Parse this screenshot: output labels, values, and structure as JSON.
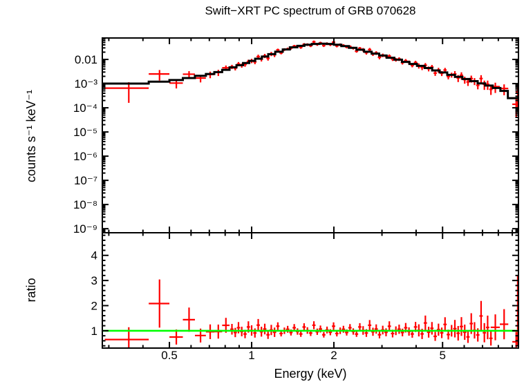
{
  "title": "Swift−XRT PC spectrum of GRB 070628",
  "colors": {
    "data": "#ff0000",
    "model": "#000000",
    "reference_line": "#00ff00",
    "frame": "#000000",
    "text": "#000000",
    "background": "#ffffff"
  },
  "axes": {
    "x_label": "Energy (keV)",
    "x_scale": "log",
    "x_range_kev": [
      0.284,
      9.48
    ],
    "x_major_ticks": [
      {
        "value": 0.5,
        "label": "0.5"
      },
      {
        "value": 1,
        "label": "1"
      },
      {
        "value": 2,
        "label": "2"
      },
      {
        "value": 5,
        "label": "5"
      }
    ],
    "x_minor_ticks": [
      0.3,
      0.4,
      0.6,
      0.7,
      0.8,
      0.9,
      3,
      4,
      6,
      7,
      8,
      9
    ],
    "top_y_major_ticks": [
      {
        "value": 0.01,
        "label": "0.01"
      },
      {
        "value": 0.001,
        "label": "10⁻³"
      },
      {
        "value": 0.0001,
        "label": "10⁻⁴"
      },
      {
        "value": 1e-05,
        "label": "10⁻⁵"
      },
      {
        "value": 1e-06,
        "label": "10⁻⁶"
      },
      {
        "value": 1e-07,
        "label": "10⁻⁷"
      },
      {
        "value": 1e-08,
        "label": "10⁻⁸"
      },
      {
        "value": 1e-09,
        "label": "10⁻⁹"
      }
    ],
    "ratio_y_major_ticks": [
      {
        "value": 1,
        "label": "1"
      },
      {
        "value": 2,
        "label": "2"
      },
      {
        "value": 3,
        "label": "3"
      },
      {
        "value": 4,
        "label": "4"
      }
    ],
    "ratio_y_minor_step": 0.2
  },
  "chart_data": {
    "type": "scatter",
    "title": "Swift−XRT PC spectrum of GRB 070628",
    "xlabel": "Energy (keV)",
    "xscale": "log",
    "x_range_kev": [
      0.284,
      9.48
    ],
    "grid": false,
    "legend": false,
    "panels": [
      {
        "name": "spectrum",
        "ylabel": "counts s⁻¹ keV⁻¹",
        "yscale": "log",
        "y_range": [
          6.8e-10,
          0.077
        ],
        "model_step": {
          "color": "#000000",
          "edges_kev": [
            0.284,
            0.42,
            0.5,
            0.56,
            0.62,
            0.68,
            0.73,
            0.78,
            0.83,
            0.88,
            0.93,
            0.98,
            1.03,
            1.09,
            1.15,
            1.22,
            1.3,
            1.38,
            1.47,
            1.56,
            1.66,
            1.77,
            1.88,
            2.0,
            2.13,
            2.27,
            2.42,
            2.58,
            2.75,
            2.93,
            3.12,
            3.33,
            3.55,
            3.78,
            4.03,
            4.3,
            4.58,
            4.88,
            5.2,
            5.55,
            5.91,
            6.3,
            6.72,
            7.16,
            7.63,
            8.14,
            8.67,
            9.48
          ],
          "values": [
            0.001,
            0.0012,
            0.0014,
            0.0017,
            0.0021,
            0.0025,
            0.003,
            0.0037,
            0.0047,
            0.0058,
            0.0071,
            0.0087,
            0.0107,
            0.0132,
            0.0166,
            0.0209,
            0.0257,
            0.0316,
            0.0363,
            0.0407,
            0.0437,
            0.0447,
            0.0437,
            0.0407,
            0.0355,
            0.0302,
            0.0251,
            0.0209,
            0.0174,
            0.0145,
            0.0117,
            0.0098,
            0.0079,
            0.0065,
            0.0054,
            0.0044,
            0.0035,
            0.0029,
            0.0023,
            0.0019,
            0.00155,
            0.00126,
            0.00102,
            0.00083,
            0.00066,
            0.0005,
            0.00025
          ]
        },
        "data_points": {
          "color": "#ff0000",
          "bin_halfwidth_frac": 0.014,
          "e": [
            0.847,
            0.871,
            0.895,
            0.92,
            0.946,
            0.973,
            1.0,
            1.028,
            1.057,
            1.086,
            1.117,
            1.148,
            1.18,
            1.213,
            1.247,
            1.282,
            1.318,
            1.355,
            1.393,
            1.432,
            1.472,
            1.514,
            1.556,
            1.6,
            1.645,
            1.69,
            1.738,
            1.786,
            1.837,
            1.888,
            1.941,
            1.995,
            2.051,
            2.109,
            2.168,
            2.228,
            2.291,
            2.355,
            2.421,
            2.489,
            2.559,
            2.63,
            2.704,
            2.78,
            2.858,
            2.938,
            3.02,
            3.105,
            3.192,
            3.281,
            3.373,
            3.467,
            3.565,
            3.664,
            3.767,
            3.873,
            3.981,
            4.093,
            4.207,
            4.325,
            4.446,
            4.571,
            4.699,
            4.831,
            4.966,
            5.105,
            5.248,
            5.395,
            5.546,
            5.702,
            5.861,
            6.026,
            6.194,
            6.368,
            6.546,
            6.73,
            6.918,
            7.112,
            7.311,
            7.516
          ],
          "y": [
            0.00498,
            0.00437,
            0.0065,
            0.00563,
            0.00618,
            0.00817,
            0.00879,
            0.00792,
            0.0131,
            0.0103,
            0.0141,
            0.0111,
            0.0171,
            0.0156,
            0.0247,
            0.0186,
            0.0257,
            0.0272,
            0.0294,
            0.0354,
            0.0352,
            0.0316,
            0.0417,
            0.0411,
            0.037,
            0.0533,
            0.042,
            0.0478,
            0.0375,
            0.045,
            0.0411,
            0.0516,
            0.0362,
            0.0407,
            0.0376,
            0.033,
            0.0338,
            0.0293,
            0.0218,
            0.0289,
            0.0254,
            0.019,
            0.0255,
            0.0167,
            0.0186,
            0.0122,
            0.0149,
            0.0136,
            0.0138,
            0.0104,
            0.0098,
            0.0104,
            0.00735,
            0.00885,
            0.00766,
            0.00566,
            0.00748,
            0.00548,
            0.00472,
            0.00576,
            0.00415,
            0.00483,
            0.00272,
            0.00365,
            0.00266,
            0.00363,
            0.00195,
            0.0023,
            0.00249,
            0.00171,
            0.00222,
            0.00146,
            0.00117,
            0.00162,
            0.00128,
            0.00085,
            0.00162,
            0.00094,
            0.00094,
            0.00058
          ],
          "yerr": [
            0.001,
            0.00087,
            0.0013,
            0.0011,
            0.0012,
            0.0016,
            0.0018,
            0.0016,
            0.0026,
            0.0021,
            0.0028,
            0.0022,
            0.0034,
            0.0031,
            0.0032,
            0.0024,
            0.0033,
            0.0035,
            0.0038,
            0.0046,
            0.0046,
            0.0041,
            0.0054,
            0.0053,
            0.0048,
            0.0069,
            0.0055,
            0.0062,
            0.0049,
            0.0059,
            0.0053,
            0.0067,
            0.0047,
            0.0053,
            0.0049,
            0.0043,
            0.0044,
            0.0038,
            0.0028,
            0.0038,
            0.0043,
            0.0032,
            0.0043,
            0.0028,
            0.0032,
            0.0021,
            0.0025,
            0.0023,
            0.0023,
            0.0018,
            0.0017,
            0.0018,
            0.0012,
            0.0015,
            0.0013,
            0.00096,
            0.0013,
            0.0013,
            0.0011,
            0.0013,
            0.00095,
            0.0011,
            0.00063,
            0.00084,
            0.00061,
            0.00083,
            0.00045,
            0.00053,
            0.0008,
            0.00055,
            0.00071,
            0.00047,
            0.00037,
            0.00052,
            0.00041,
            0.00027,
            0.00061,
            0.00039,
            0.00039,
            0.00024
          ]
        },
        "data_points_wide": {
          "color": "#ff0000",
          "e": [
            0.355,
            0.46,
            0.53,
            0.59,
            0.65,
            0.705,
            0.755,
            0.805,
            7.8,
            8.4,
            9.3,
            9.42
          ],
          "ew": [
            0.065,
            0.04,
            0.03,
            0.03,
            0.03,
            0.025,
            0.025,
            0.025,
            0.3,
            0.3,
            0.3,
            0.15
          ],
          "y": [
            0.00065,
            0.0025,
            0.00105,
            0.00245,
            0.0017,
            0.0024,
            0.0029,
            0.0045,
            0.00075,
            0.00063,
            0.00014,
            0.00045
          ],
          "yerr": [
            0.00049,
            0.00115,
            0.00042,
            0.00082,
            0.00058,
            0.00073,
            0.00084,
            0.0011,
            0.00034,
            0.0003,
            0.0001,
            0.00035
          ]
        }
      },
      {
        "name": "ratio",
        "ylabel": "ratio",
        "yscale": "linear",
        "y_range": [
          0.31,
          4.9
        ],
        "reference_line": {
          "value": 1,
          "color": "#00ff00"
        },
        "derived": "ratio = data / model, same energy bins as spectrum panel"
      }
    ]
  }
}
